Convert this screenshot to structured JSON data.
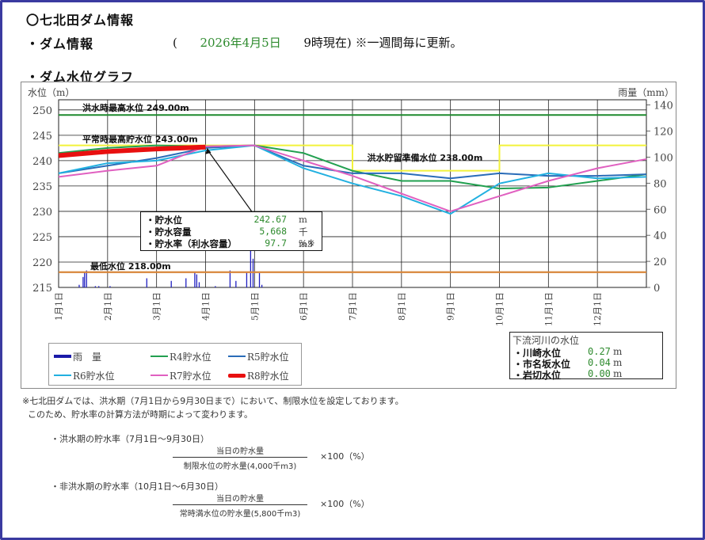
{
  "header": {
    "title": "〇七北田ダム情報",
    "section1": "・ダム情報",
    "stamp_open": "(",
    "date": "2026年4月5日",
    "stamp_rest": "9時現在) ※一週間毎に更新。",
    "section2": "・ダム水位グラフ"
  },
  "chart_data": {
    "type": "line",
    "title": "ダム水位グラフ",
    "ylabel": "水位（m）",
    "y2label": "雨量（mm）",
    "ylim": [
      215,
      252
    ],
    "y2lim": [
      0,
      144
    ],
    "yticks": [
      215,
      220,
      225,
      230,
      235,
      240,
      245,
      250
    ],
    "y2ticks": [
      0,
      20,
      40,
      60,
      80,
      100,
      120,
      140
    ],
    "categories": [
      "1月1日",
      "2月1日",
      "3月1日",
      "4月1日",
      "5月1日",
      "6月1日",
      "7月1日",
      "8月1日",
      "9月1日",
      "10月1日",
      "11月1日",
      "12月1日"
    ],
    "grid": true,
    "reference_lines": [
      {
        "label": "洪水時最高水位 249.00m",
        "value": 249.0,
        "color": "#1e8a2e"
      },
      {
        "label": "平常時最高貯水位 243.00m",
        "value": 243.0,
        "color": "#f2f23a"
      },
      {
        "label": "洪水貯留準備水位 238.00m",
        "value": 238.0,
        "color": "#f2f23a",
        "period": "7月1日〜9月30日"
      },
      {
        "label": "最低水位 218.00m",
        "value": 218.0,
        "color": "#d8863a"
      }
    ],
    "series": [
      {
        "name": "R4貯水位",
        "color": "#22a050",
        "values": [
          241.5,
          242.5,
          243.0,
          242.8,
          243.0,
          241.5,
          238.0,
          236.0,
          236.0,
          234.5,
          234.7,
          236.0,
          237.3
        ]
      },
      {
        "name": "R5貯水位",
        "color": "#2a6cb8",
        "values": [
          237.5,
          239.0,
          240.5,
          242.5,
          243.0,
          239.0,
          237.5,
          237.5,
          236.5,
          237.5,
          237.0,
          237.0,
          237.3
        ]
      },
      {
        "name": "R6貯水位",
        "color": "#22b0e0",
        "values": [
          237.5,
          239.5,
          240.0,
          242.0,
          243.0,
          238.5,
          235.5,
          233.0,
          229.5,
          235.5,
          237.5,
          236.5,
          236.8
        ]
      },
      {
        "name": "R7貯水位",
        "color": "#e060c0",
        "values": [
          236.8,
          238.0,
          239.0,
          242.8,
          243.0,
          240.0,
          237.0,
          233.5,
          230.0,
          233.0,
          236.0,
          238.5,
          240.3
        ]
      },
      {
        "name": "R8貯水位",
        "color": "#e81010",
        "values": [
          241.0,
          241.8,
          242.3,
          242.67
        ]
      }
    ],
    "rainfall": {
      "name": "雨 量",
      "color": "#2020c0",
      "bars": [
        [
          0.42,
          2
        ],
        [
          0.5,
          8
        ],
        [
          0.53,
          12
        ],
        [
          0.57,
          13
        ],
        [
          0.75,
          1
        ],
        [
          0.82,
          1
        ],
        [
          1.05,
          1
        ],
        [
          1.8,
          7
        ],
        [
          2.3,
          5
        ],
        [
          2.6,
          7
        ],
        [
          2.78,
          12
        ],
        [
          2.82,
          10
        ],
        [
          2.87,
          4
        ],
        [
          3.2,
          1
        ],
        [
          3.5,
          13
        ],
        [
          3.62,
          5
        ],
        [
          3.84,
          12
        ],
        [
          3.92,
          28
        ],
        [
          3.97,
          22
        ],
        [
          4.1,
          11
        ],
        [
          4.15,
          2
        ]
      ]
    }
  },
  "infobox": {
    "rows": [
      {
        "label": "・貯水位",
        "value": "242.67",
        "unit": "m"
      },
      {
        "label": "・貯水容量",
        "value": "5,668",
        "unit": "千m3"
      },
      {
        "label": "・貯水率（利水容量）",
        "value": "97.7",
        "unit": "%※"
      }
    ]
  },
  "legend": {
    "items": [
      {
        "label": "雨　量",
        "color": "#1a1aa8"
      },
      {
        "label": "R4貯水位",
        "color": "#22a050"
      },
      {
        "label": "R5貯水位",
        "color": "#2a6cb8"
      },
      {
        "label": "R6貯水位",
        "color": "#22b0e0"
      },
      {
        "label": "R7貯水位",
        "color": "#e060c0"
      },
      {
        "label": "R8貯水位",
        "color": "#e81010"
      }
    ]
  },
  "downstream": {
    "title": "下流河川の水位",
    "rows": [
      {
        "label": "・川崎水位",
        "value": "0.27",
        "unit": "m"
      },
      {
        "label": "・市名坂水位",
        "value": "0.04",
        "unit": "m"
      },
      {
        "label": "・岩切水位",
        "value": "0.00",
        "unit": "m"
      }
    ]
  },
  "notes": {
    "line1": "※七北田ダムでは、洪水期（7月1日から9月30日まで）において、制限水位を設定しております。",
    "line2": "  このため、貯水率の計算方法が時期によって変わります。",
    "flood_title": "・洪水期の貯水率（7月1日～9月30日）",
    "flood_num": "当日の貯水量",
    "flood_den": "制限水位の貯水量(4,000千m3)",
    "nonflood_title": "・非洪水期の貯水率（10月1日～6月30日）",
    "nonflood_num": "当日の貯水量",
    "nonflood_den": "常時満水位の貯水量(5,800千m3)",
    "times": "×100（%）"
  }
}
